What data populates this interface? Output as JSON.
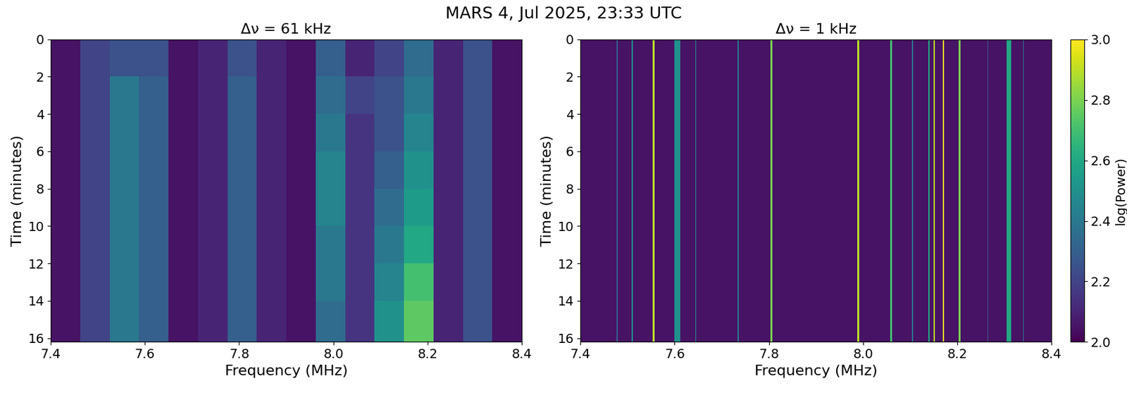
{
  "title": "MARS 4, Jul 2025, 23:33 UTC",
  "colorbar": {
    "label": "log(Power)",
    "range": [
      2.0,
      3.0
    ],
    "ticks": [
      {
        "value": 2.0,
        "label": "2.0"
      },
      2.2,
      2.4,
      2.6,
      2.8,
      {
        "value": 3.0,
        "label": "3.0"
      }
    ],
    "color": "viridis"
  },
  "chart_data": [
    {
      "type": "heatmap",
      "title": "Δν = 61 kHz",
      "x_label": "Frequency (MHz)",
      "y_label": "Time (minutes)",
      "xlim": [
        7.4,
        8.4
      ],
      "ylim": [
        16.2,
        0
      ],
      "xticks": [
        7.4,
        7.6,
        7.8,
        {
          "value": 8.0,
          "label": "8.0"
        },
        8.2,
        8.4
      ],
      "yticks": [
        0,
        2,
        4,
        6,
        8,
        10,
        12,
        14,
        16
      ],
      "x_edges": [
        7.4,
        7.4625,
        7.525,
        7.5875,
        7.65,
        7.7125,
        7.775,
        7.8375,
        7.9,
        7.9625,
        8.025,
        8.0875,
        8.15,
        8.2125,
        8.275,
        8.3375,
        8.4
      ],
      "y_edges": [
        0,
        2,
        4,
        6,
        8,
        10,
        12,
        14,
        16.2
      ],
      "cells": [
        [
          2.05,
          2.2,
          2.25,
          2.25,
          2.05,
          2.1,
          2.25,
          2.1,
          2.05,
          2.3,
          2.1,
          2.2,
          2.35,
          2.1,
          2.25,
          2.05
        ],
        [
          2.05,
          2.2,
          2.4,
          2.3,
          2.05,
          2.1,
          2.3,
          2.1,
          2.05,
          2.35,
          2.2,
          2.25,
          2.4,
          2.1,
          2.25,
          2.05
        ],
        [
          2.05,
          2.2,
          2.4,
          2.3,
          2.05,
          2.1,
          2.3,
          2.1,
          2.05,
          2.4,
          2.15,
          2.25,
          2.45,
          2.1,
          2.25,
          2.05
        ],
        [
          2.05,
          2.2,
          2.4,
          2.3,
          2.05,
          2.1,
          2.3,
          2.1,
          2.05,
          2.45,
          2.15,
          2.3,
          2.5,
          2.1,
          2.25,
          2.05
        ],
        [
          2.05,
          2.2,
          2.4,
          2.3,
          2.05,
          2.1,
          2.3,
          2.1,
          2.05,
          2.45,
          2.15,
          2.35,
          2.55,
          2.1,
          2.25,
          2.05
        ],
        [
          2.05,
          2.2,
          2.4,
          2.3,
          2.05,
          2.1,
          2.3,
          2.1,
          2.05,
          2.4,
          2.15,
          2.4,
          2.6,
          2.1,
          2.25,
          2.05
        ],
        [
          2.05,
          2.2,
          2.4,
          2.3,
          2.05,
          2.1,
          2.3,
          2.1,
          2.05,
          2.4,
          2.15,
          2.45,
          2.7,
          2.1,
          2.25,
          2.05
        ],
        [
          2.05,
          2.2,
          2.4,
          2.3,
          2.05,
          2.1,
          2.3,
          2.1,
          2.05,
          2.35,
          2.15,
          2.5,
          2.75,
          2.1,
          2.25,
          2.05
        ]
      ]
    },
    {
      "type": "spectral_lines",
      "title": "Δν = 1 kHz",
      "x_label": "Frequency (MHz)",
      "y_label": "Time (minutes)",
      "xlim": [
        7.4,
        8.4
      ],
      "ylim": [
        16.2,
        0
      ],
      "xticks": [
        7.4,
        7.6,
        7.8,
        {
          "value": 8.0,
          "label": "8.0"
        },
        8.2,
        8.4
      ],
      "yticks": [
        0,
        2,
        4,
        6,
        8,
        10,
        12,
        14,
        16
      ],
      "background": 2.05,
      "lines": [
        {
          "lo": 7.477,
          "hi": 7.479,
          "value": 2.3
        },
        {
          "lo": 7.509,
          "hi": 7.511,
          "value": 2.5
        },
        {
          "lo": 7.553,
          "hi": 7.557,
          "value": 2.9
        },
        {
          "lo": 7.6,
          "hi": 7.612,
          "value": 2.5
        },
        {
          "lo": 7.644,
          "hi": 7.646,
          "value": 2.5
        },
        {
          "lo": 7.734,
          "hi": 7.736,
          "value": 2.4
        },
        {
          "lo": 7.803,
          "hi": 7.807,
          "value": 2.8
        },
        {
          "lo": 7.988,
          "hi": 7.992,
          "value": 2.9
        },
        {
          "lo": 8.058,
          "hi": 8.062,
          "value": 2.7
        },
        {
          "lo": 8.104,
          "hi": 8.106,
          "value": 2.4
        },
        {
          "lo": 8.139,
          "hi": 8.141,
          "value": 2.6
        },
        {
          "lo": 8.149,
          "hi": 8.152,
          "value": 2.9
        },
        {
          "lo": 8.169,
          "hi": 8.172,
          "value": 3.0
        },
        {
          "lo": 8.203,
          "hi": 8.207,
          "value": 2.8
        },
        {
          "lo": 8.264,
          "hi": 8.266,
          "value": 2.3
        },
        {
          "lo": 8.305,
          "hi": 8.315,
          "value": 2.6
        },
        {
          "lo": 8.339,
          "hi": 8.341,
          "value": 2.4
        }
      ]
    }
  ]
}
